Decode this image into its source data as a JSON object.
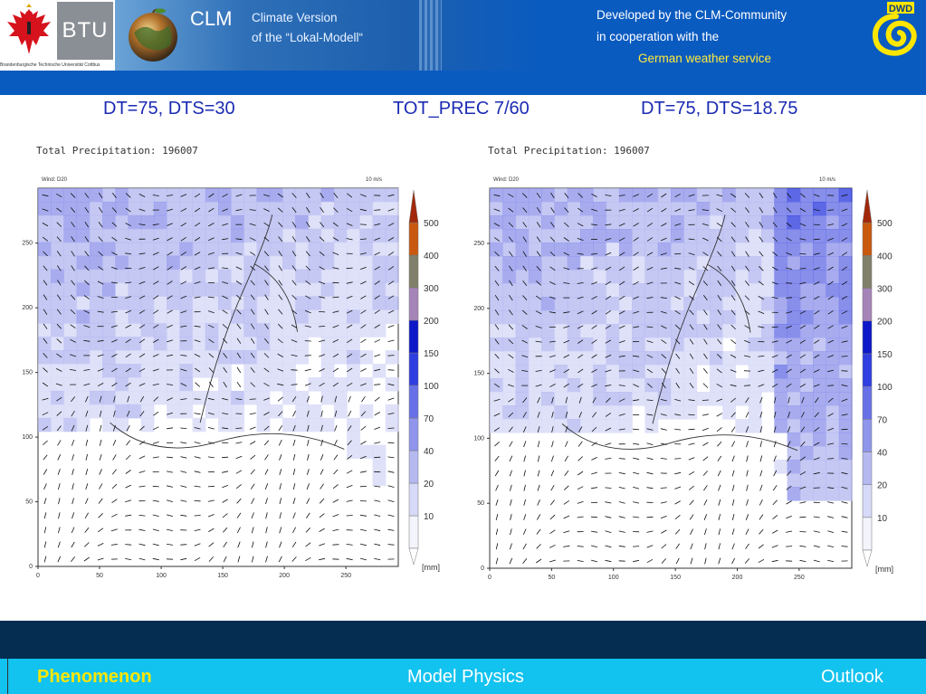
{
  "header": {
    "btu_label": "BTU",
    "btu_caption": "Brandenburgische Technische Universität Cottbus",
    "clm_label": "CLM",
    "clm_subtitle_1": "Climate Version",
    "clm_subtitle_2": "of the “Lokal-Modell“",
    "developed_line_1": "Developed by the CLM-Community",
    "developed_line_2": "in cooperation with the",
    "developed_line_3": "German weather service",
    "dwd_label": "DWD"
  },
  "titles": {
    "left": "DT=75, DTS=30",
    "center": "TOT_PREC 7/60",
    "right": "DT=75, DTS=18.75"
  },
  "maps": [
    {
      "title": "Total Precipitation: 196007",
      "wind_label": "Wind:",
      "wind_level": "D20",
      "wind_ref": "10 m/s",
      "unit": "[mm]",
      "x_ticks": [
        "0",
        "50",
        "100",
        "150",
        "200",
        "250"
      ],
      "y_ticks": [
        "0",
        "50",
        "100",
        "150",
        "200",
        "250"
      ],
      "legend": [
        "10",
        "20",
        "40",
        "70",
        "100",
        "150",
        "200",
        "300",
        "400",
        "500"
      ]
    },
    {
      "title": "Total Precipitation: 196007",
      "wind_label": "Wind:",
      "wind_level": "D20",
      "wind_ref": "10 m/s",
      "unit": "[mm]",
      "x_ticks": [
        "0",
        "50",
        "100",
        "150",
        "200",
        "250"
      ],
      "y_ticks": [
        "0",
        "50",
        "100",
        "150",
        "200",
        "250"
      ],
      "legend": [
        "10",
        "20",
        "40",
        "70",
        "100",
        "150",
        "200",
        "300",
        "400",
        "500"
      ]
    }
  ],
  "legend_colors": [
    "#f4f4fc",
    "#d6d9f7",
    "#b5b9f0",
    "#8f95ea",
    "#6770e6",
    "#2f3ee0",
    "#0d18c8",
    "#a584b8",
    "#80806a",
    "#c9590e",
    "#a1280a"
  ],
  "nav": {
    "phenomenon": "Phenomenon",
    "model_physics": "Model Physics",
    "outlook": "Outlook",
    "active_color": "#ffe600"
  }
}
